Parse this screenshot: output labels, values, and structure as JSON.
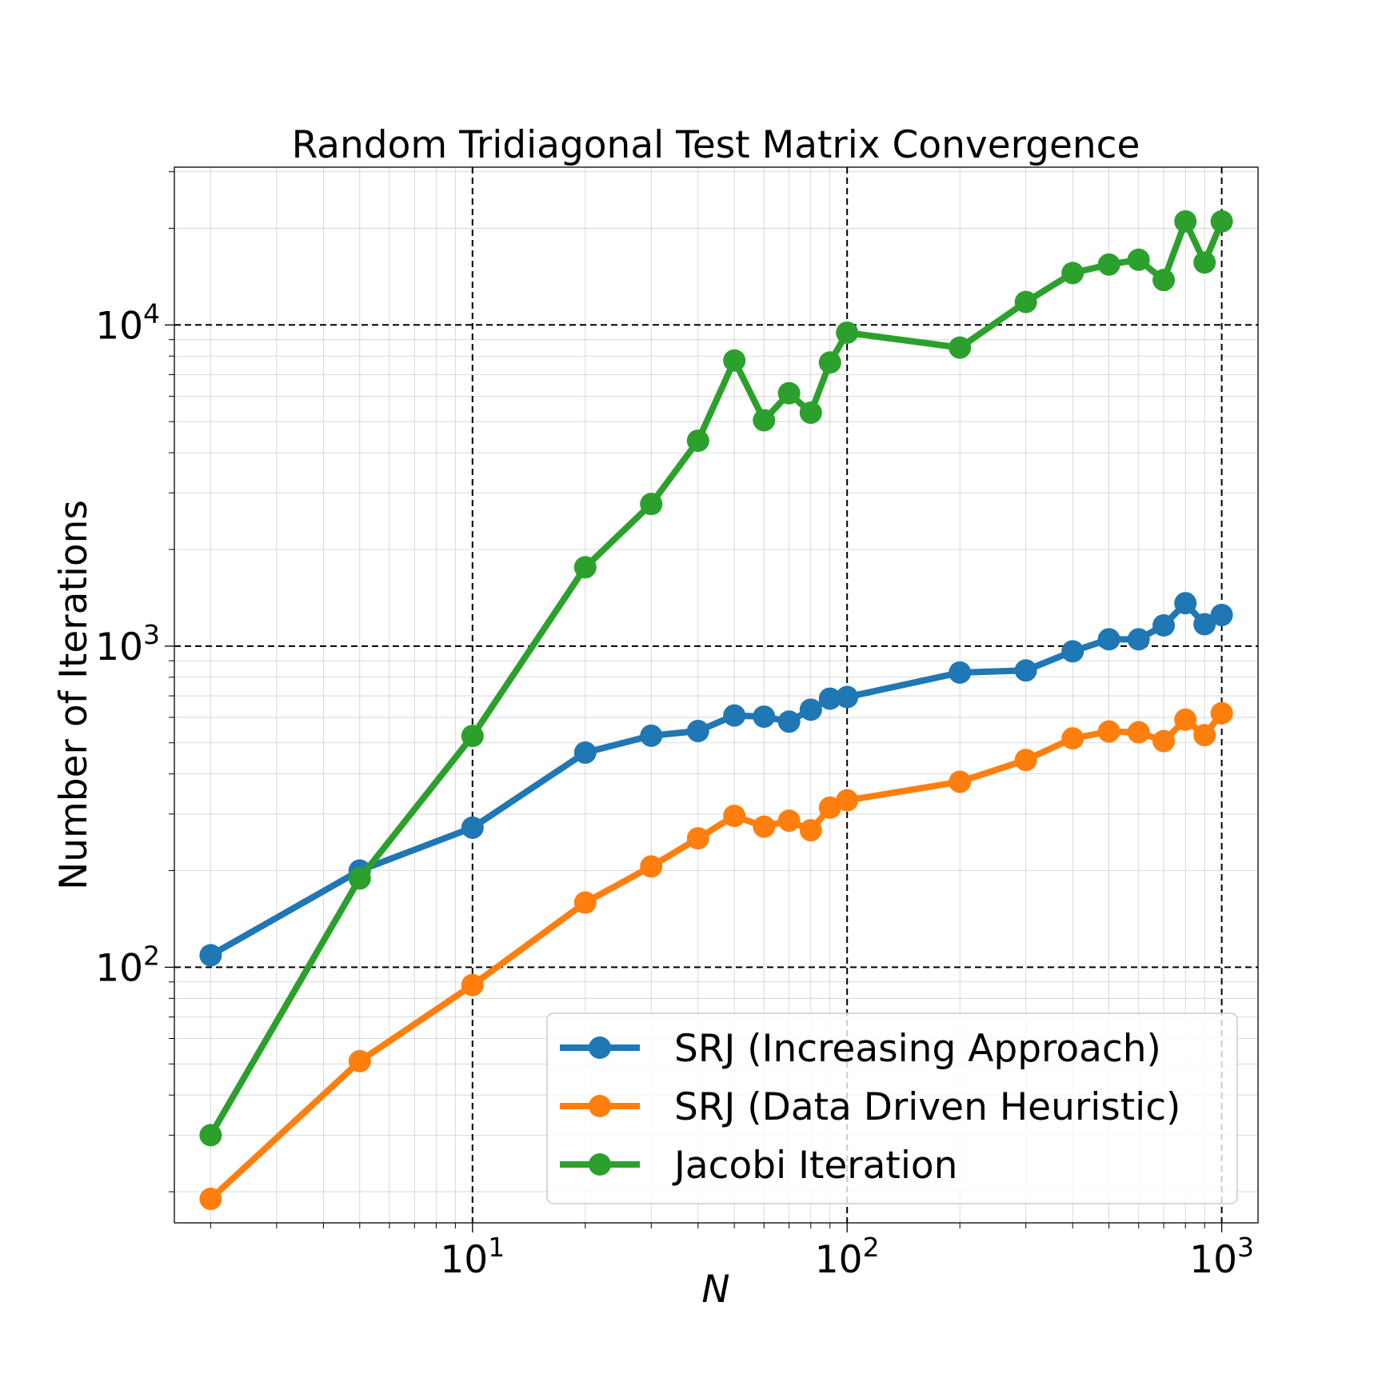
{
  "chart_data": {
    "type": "line",
    "title": "Random Tridiagonal Test Matrix Convergence",
    "xlabel": "N",
    "ylabel": "Number of Iterations",
    "xscale": "log",
    "yscale": "log",
    "xlim": [
      1.6,
      1250
    ],
    "ylim": [
      16,
      31000
    ],
    "x_major_ticks": [
      {
        "value": 10,
        "base": "10",
        "exp": "1"
      },
      {
        "value": 100,
        "base": "10",
        "exp": "2"
      },
      {
        "value": 1000,
        "base": "10",
        "exp": "3"
      }
    ],
    "y_major_ticks": [
      {
        "value": 100,
        "base": "10",
        "exp": "2"
      },
      {
        "value": 1000,
        "base": "10",
        "exp": "3"
      },
      {
        "value": 10000,
        "base": "10",
        "exp": "4"
      }
    ],
    "grid": true,
    "legend_position": "lower-right",
    "x": [
      2,
      5,
      10,
      20,
      30,
      40,
      50,
      60,
      70,
      80,
      90,
      100,
      200,
      300,
      400,
      500,
      600,
      700,
      800,
      900,
      1000
    ],
    "series": [
      {
        "name": "SRJ (Increasing Approach)",
        "color": "#1f77b4",
        "values": [
          109,
          200,
          272,
          466,
          526,
          544,
          608,
          603,
          582,
          634,
          686,
          694,
          827,
          840,
          963,
          1050,
          1050,
          1160,
          1360,
          1170,
          1250
        ]
      },
      {
        "name": "SRJ (Data Driven Heuristic)",
        "color": "#ff7f0e",
        "values": [
          19,
          51,
          88,
          159,
          206,
          252,
          296,
          274,
          286,
          267,
          314,
          331,
          378,
          442,
          516,
          542,
          539,
          506,
          590,
          528,
          618
        ]
      },
      {
        "name": "Jacobi Iteration",
        "color": "#2ca02c",
        "values": [
          30,
          189,
          525,
          1760,
          2770,
          4360,
          7750,
          5050,
          6130,
          5330,
          7640,
          9460,
          8500,
          11790,
          14510,
          15420,
          15960,
          13800,
          21010,
          15650,
          21010
        ]
      }
    ]
  }
}
